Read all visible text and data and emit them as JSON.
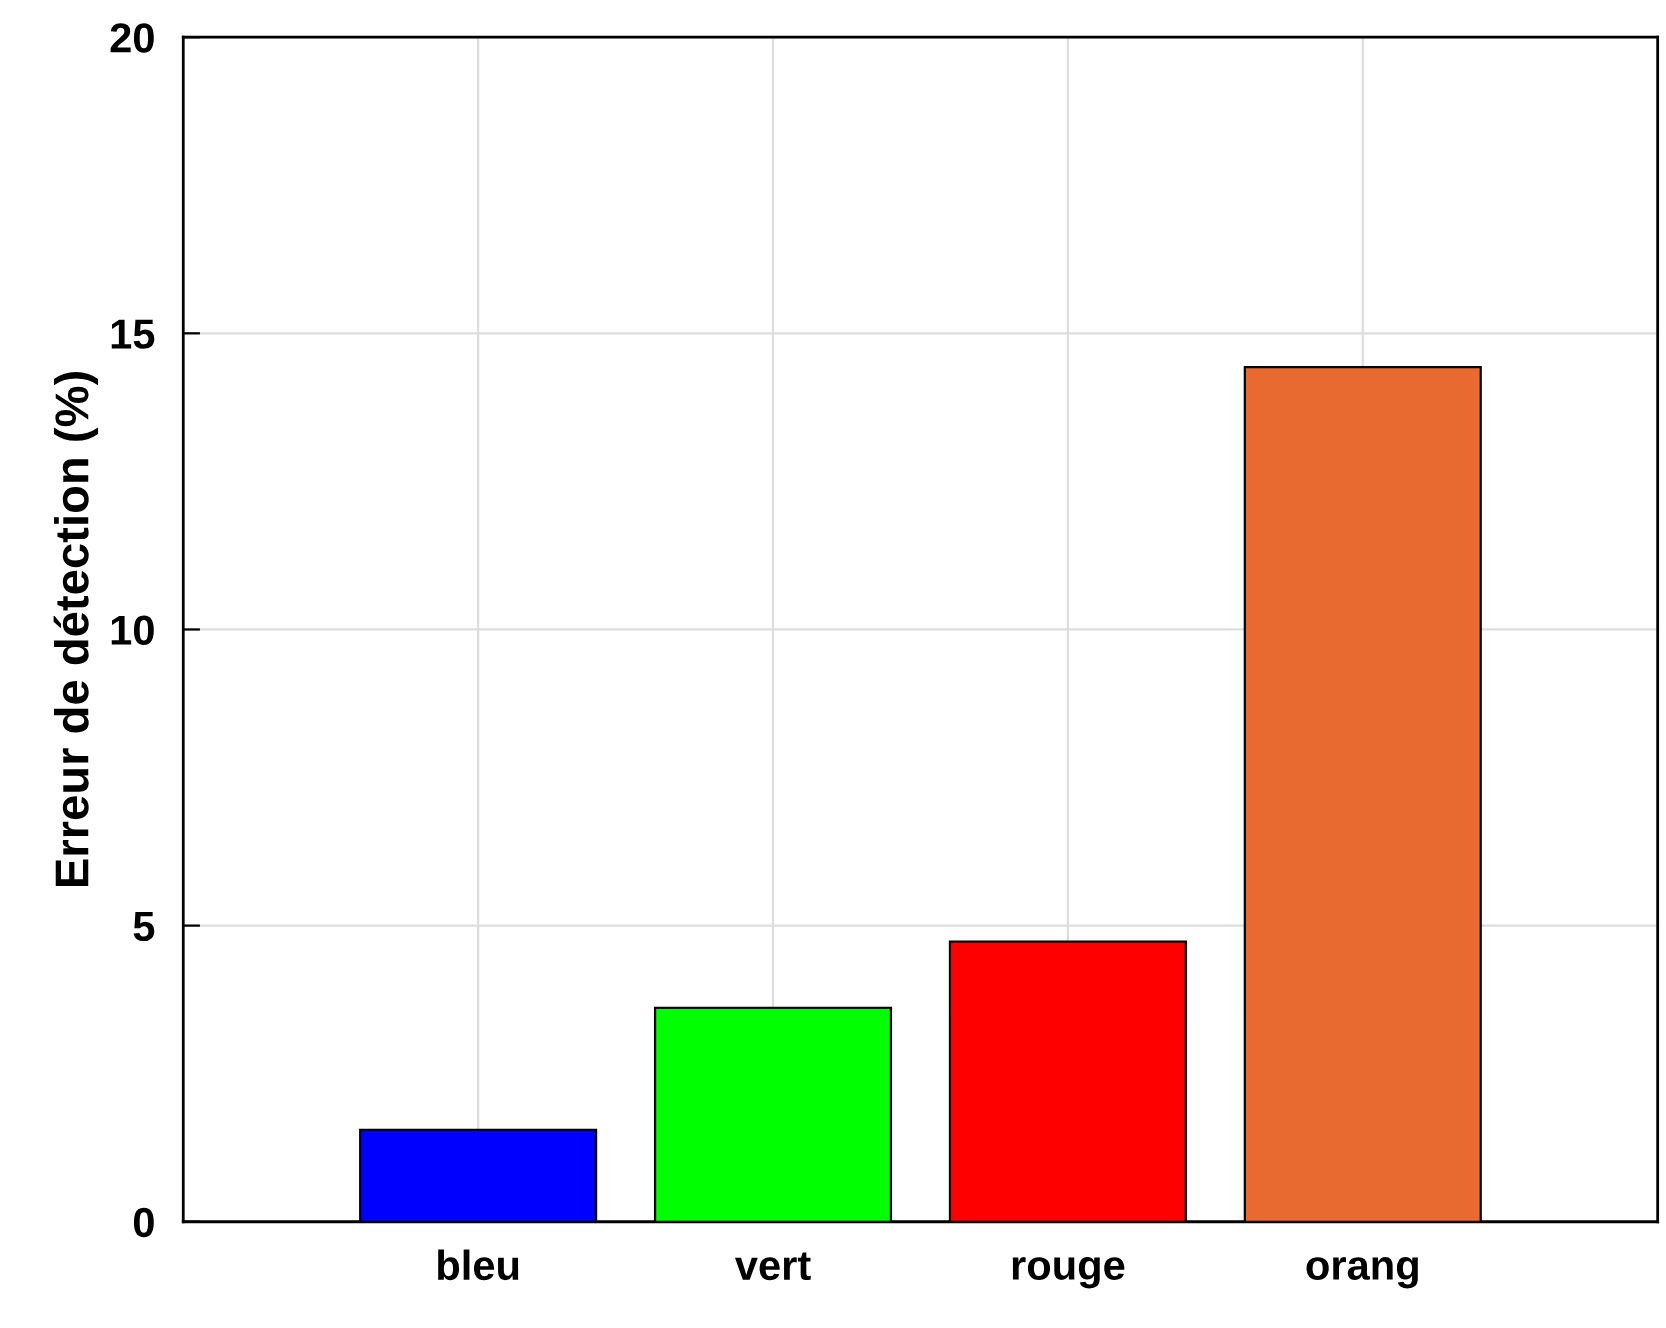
{
  "chart_data": {
    "type": "bar",
    "ylabel": "Erreur de détection (%)",
    "categories": [
      "bleu",
      "vert",
      "rouge",
      "orang"
    ],
    "values": [
      1.55,
      3.61,
      4.73,
      14.43
    ],
    "colors": [
      "#0000ff",
      "#00ff00",
      "#ff0000",
      "#e86a30"
    ],
    "ylim": [
      0,
      20
    ],
    "yticks": [
      0,
      5,
      10,
      15,
      20
    ],
    "grid": true
  }
}
